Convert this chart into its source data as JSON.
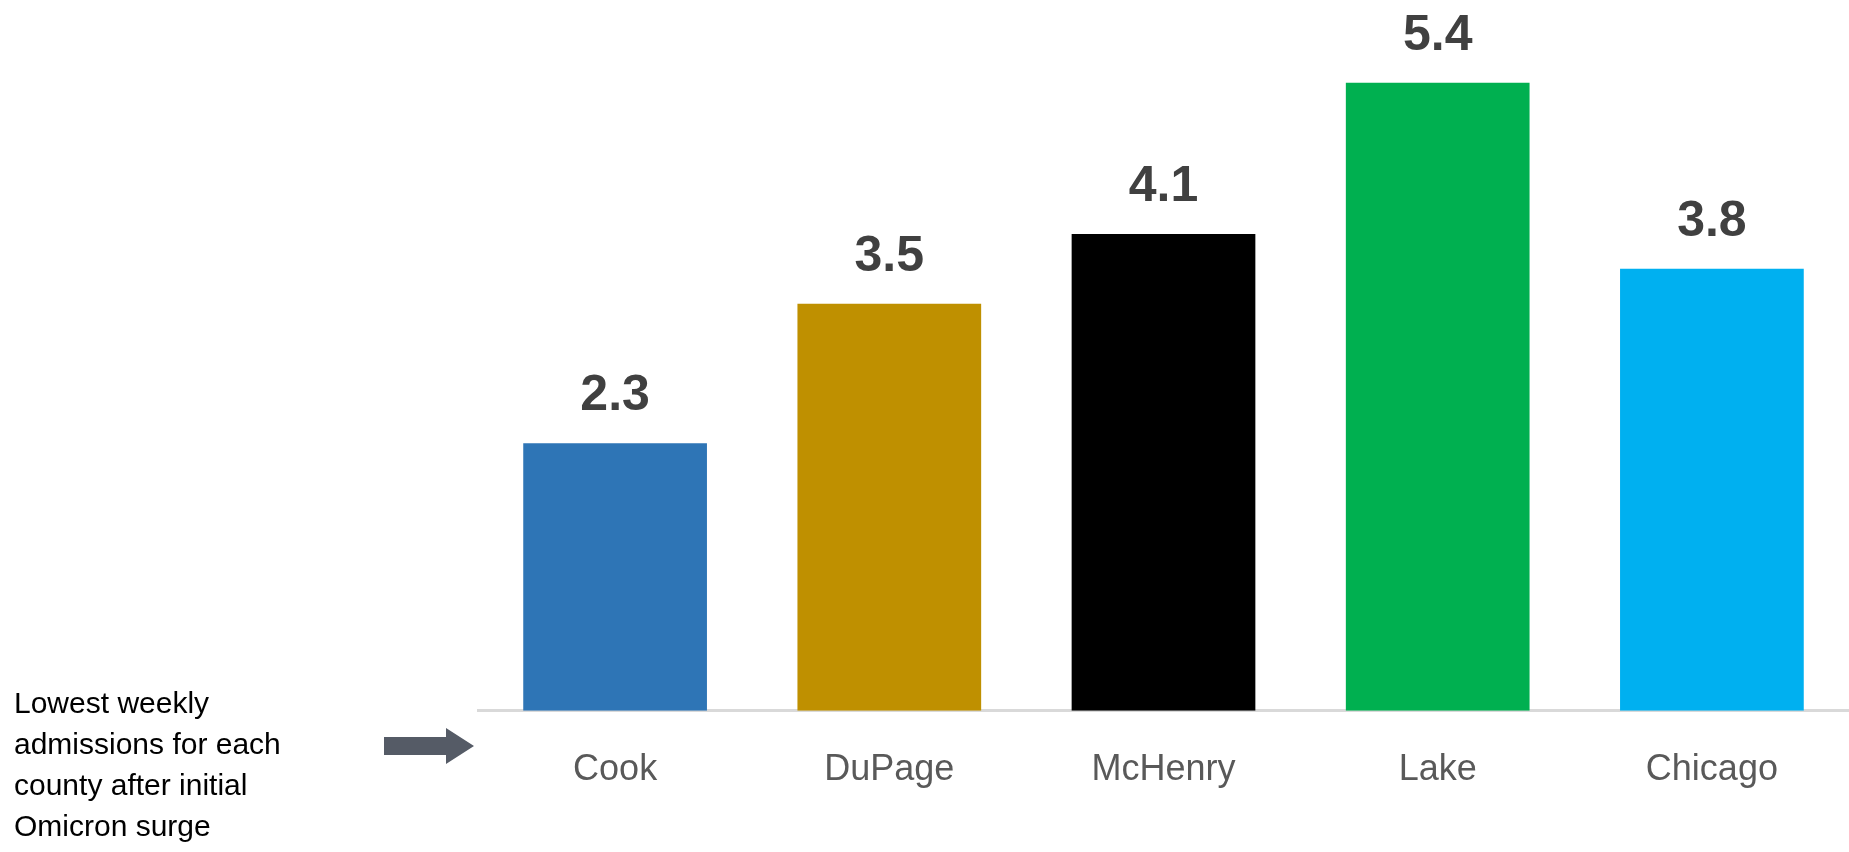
{
  "chart_data": {
    "type": "bar",
    "categories": [
      "Cook",
      "DuPage",
      "McHenry",
      "Lake",
      "Chicago"
    ],
    "values": [
      2.3,
      3.5,
      4.1,
      5.4,
      3.8
    ],
    "colors": [
      "#2e75b6",
      "#bf9000",
      "#000000",
      "#00b050",
      "#00b0f0"
    ],
    "data_labels": true,
    "grid": false,
    "legend": false,
    "tick_labels": "x",
    "annotations": [
      "Lowest weekly admissions for each county after initial Omicron surge"
    ]
  }
}
